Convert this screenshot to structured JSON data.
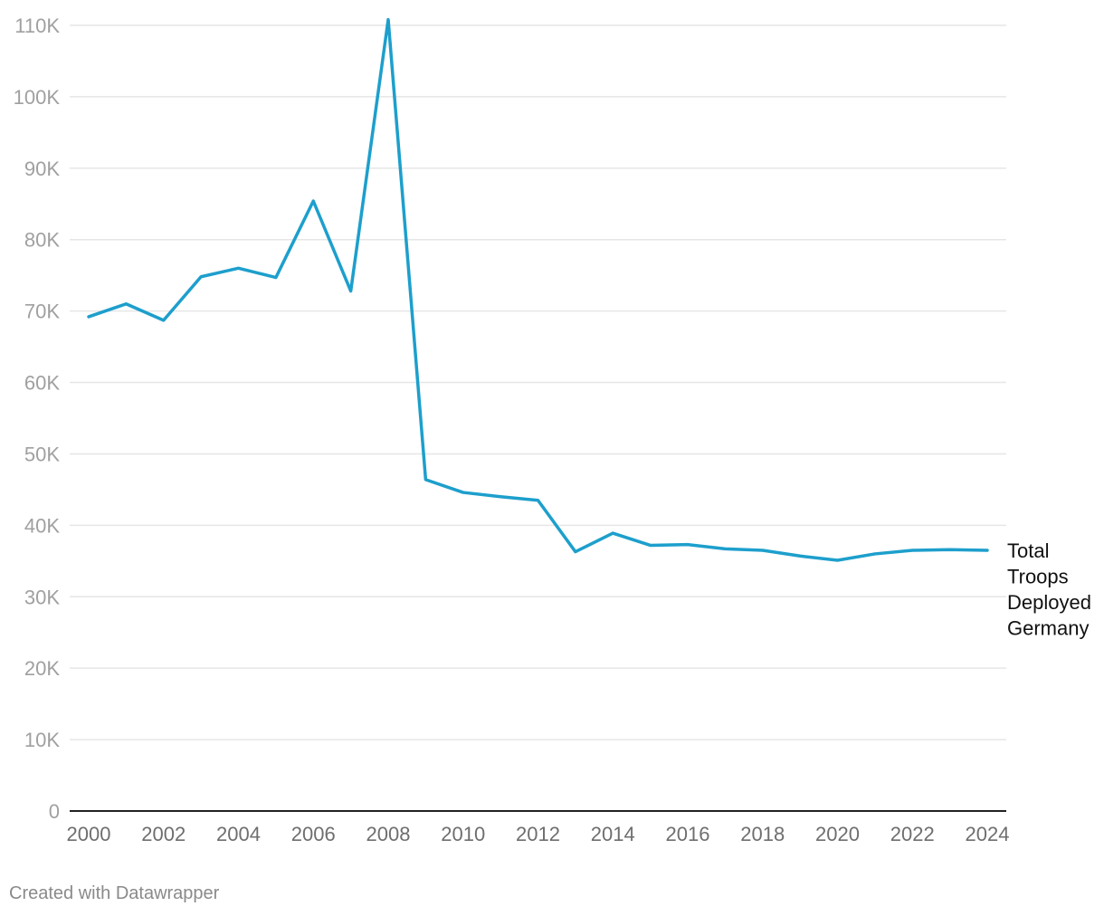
{
  "chart_data": {
    "type": "line",
    "title": "",
    "xlabel": "",
    "ylabel": "",
    "x": [
      2000,
      2001,
      2002,
      2003,
      2004,
      2005,
      2006,
      2007,
      2008,
      2009,
      2010,
      2011,
      2012,
      2013,
      2014,
      2015,
      2016,
      2017,
      2018,
      2019,
      2020,
      2021,
      2022,
      2023,
      2024
    ],
    "xlim": [
      2000,
      2024
    ],
    "ylim": [
      0,
      110000
    ],
    "x_ticks": [
      2000,
      2002,
      2004,
      2006,
      2008,
      2010,
      2012,
      2014,
      2016,
      2018,
      2020,
      2022,
      2024
    ],
    "x_tick_labels": [
      "2000",
      "2002",
      "2004",
      "2006",
      "2008",
      "2010",
      "2012",
      "2014",
      "2016",
      "2018",
      "2020",
      "2022",
      "2024"
    ],
    "y_ticks": [
      0,
      10000,
      20000,
      30000,
      40000,
      50000,
      60000,
      70000,
      80000,
      90000,
      100000,
      110000
    ],
    "y_tick_labels": [
      "0",
      "10K",
      "20K",
      "30K",
      "40K",
      "50K",
      "60K",
      "70K",
      "80K",
      "90K",
      "100K",
      "110K"
    ],
    "grid": true,
    "series": [
      {
        "name": "Total Troops Deployed Germany",
        "label_lines": [
          "Total",
          "Troops",
          "Deployed",
          "Germany"
        ],
        "color": "#1d9fcc",
        "values": [
          69200,
          71000,
          68700,
          74800,
          76000,
          74700,
          85400,
          72800,
          110800,
          46400,
          44600,
          44000,
          43500,
          36300,
          38900,
          37200,
          37300,
          36700,
          36500,
          35700,
          35100,
          36000,
          36500,
          36600,
          36500
        ]
      }
    ]
  },
  "footer": {
    "credit": "Created with Datawrapper"
  },
  "colors": {
    "grid": "#e6e6e6",
    "axis": "#222222",
    "tick_text_y": "#a0a0a0",
    "tick_text_x": "#6e6e6e",
    "label_text": "#111111"
  }
}
